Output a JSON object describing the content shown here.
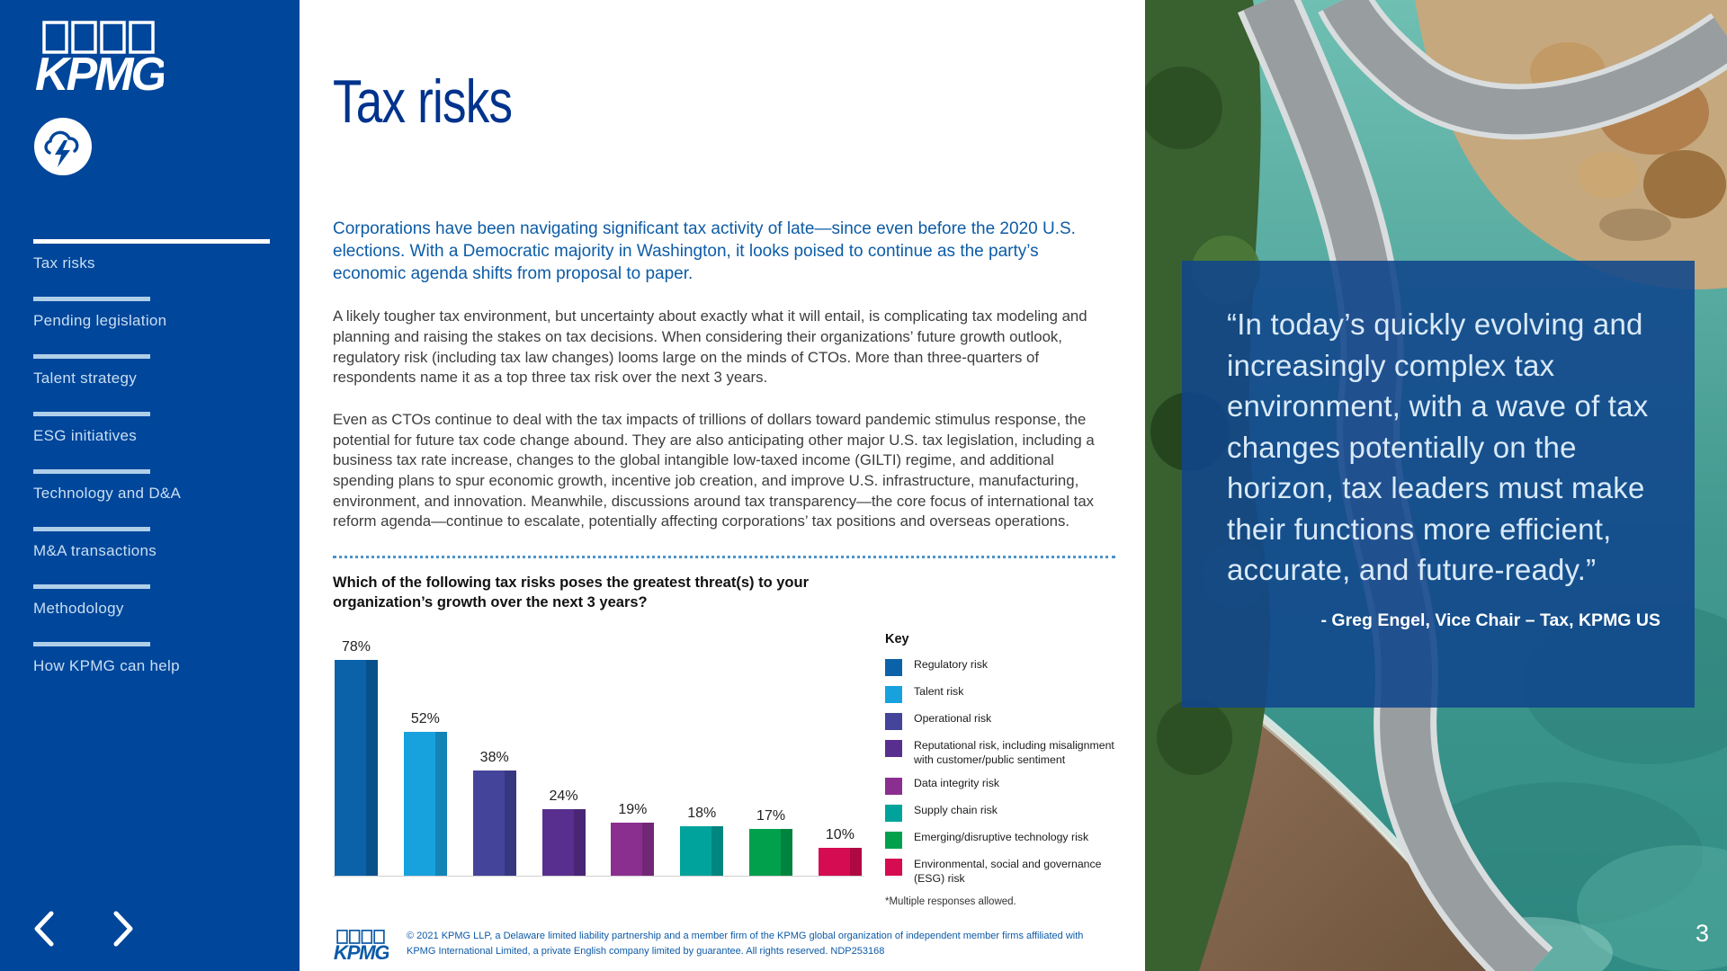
{
  "colors": {
    "sidebar_bg": "#00469B",
    "title_blue": "#00338D",
    "intro_blue": "#0D5CA6",
    "quote_overlay": "rgba(16,70,140,0.88)"
  },
  "sidebar": {
    "logo_text": "KPMG",
    "nav": [
      {
        "label": "Tax risks",
        "active": true
      },
      {
        "label": "Pending legislation",
        "active": false
      },
      {
        "label": "Talent strategy",
        "active": false
      },
      {
        "label": "ESG initiatives",
        "active": false
      },
      {
        "label": "Technology and D&A",
        "active": false
      },
      {
        "label": "M&A transactions",
        "active": false
      },
      {
        "label": "Methodology",
        "active": false
      },
      {
        "label": "How KPMG can help",
        "active": false
      }
    ]
  },
  "main": {
    "title": "Tax risks",
    "intro": "Corporations have been navigating significant tax activity of late—since even before the 2020 U.S. elections. With a Democratic majority in Washington, it looks poised to continue as the party’s economic agenda shifts from proposal to paper.",
    "paragraphs": [
      "A likely tougher tax environment, but uncertainty about exactly what it will entail, is complicating tax modeling and planning and raising the stakes on tax decisions. When considering their organizations’ future growth outlook, regulatory risk (including tax law changes) looms large on the minds of CTOs. More than three-quarters of respondents name it as a top three tax risk over the next 3 years.",
      "Even as CTOs continue to deal with the tax impacts of trillions of dollars toward pandemic stimulus response, the potential for future tax code change abound. They are also anticipating other major U.S. tax legislation, including a business tax rate increase, changes to the global intangible low-taxed income (GILTI) regime, and additional spending plans to spur economic growth, incentive job creation, and improve U.S. infrastructure, manufacturing, environment, and innovation. Meanwhile, discussions around tax transparency—the core focus of international tax reform agenda—continue to escalate, potentially affecting corporations’ tax positions and overseas operations."
    ],
    "question": "Which of the following tax risks poses the greatest threat(s) to your organization’s growth over the next 3 years?",
    "footer": {
      "copyright": "© 2021 KPMG LLP, a Delaware limited liability partnership and a member firm of the KPMG global organization of independent member firms affiliated with KPMG International Limited, a private English company limited by guarantee. All rights reserved. NDP253168"
    }
  },
  "chart_data": {
    "type": "bar",
    "title": "Which of the following tax risks poses the greatest threat(s) to your organization’s growth over the next 3 years?",
    "legend_title": "Key",
    "legend_position": "right",
    "categories": [
      "Regulatory risk",
      "Talent risk",
      "Operational risk",
      "Reputational risk, including misalignment with customer/public sentiment",
      "Data integrity risk",
      "Supply chain risk",
      "Emerging/disruptive technology risk",
      "Environmental, social and governance (ESG) risk"
    ],
    "values": [
      78,
      52,
      38,
      24,
      19,
      18,
      17,
      10
    ],
    "unit": "%",
    "ylim": [
      0,
      80
    ],
    "grid": false,
    "colors": [
      "#0C62A9",
      "#17A2DE",
      "#44449B",
      "#582F8F",
      "#8A2F90",
      "#00A39B",
      "#00A04C",
      "#D50C52"
    ],
    "footnote": "*Multiple responses allowed."
  },
  "quote": {
    "text": "“In today’s quickly evolving and increasingly complex tax environment, with a wave of tax changes potentially on the horizon, tax leaders must make their functions more efficient, accurate, and future-ready.”",
    "attribution": "- Greg Engel, Vice Chair – Tax, KPMG US"
  },
  "page_number": "3"
}
